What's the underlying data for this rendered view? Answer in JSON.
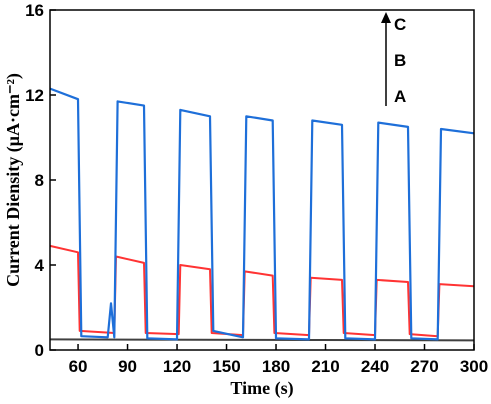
{
  "chart_data": {
    "type": "line",
    "xlabel": "Time (s)",
    "ylabel": "Current Diensity (μA·cm⁻²)",
    "xlim": [
      43,
      300
    ],
    "ylim": [
      0,
      16
    ],
    "x_ticks": [
      60,
      90,
      120,
      150,
      180,
      210,
      240,
      270,
      300
    ],
    "y_ticks": [
      0,
      4,
      8,
      12,
      16
    ],
    "grid": false,
    "legend": "none",
    "annotation": {
      "labels": [
        "C",
        "B",
        "A"
      ],
      "arrow": "up"
    },
    "series": [
      {
        "label": "A",
        "color": "#404040",
        "x": [
          43,
          300
        ],
        "y": [
          0.5,
          0.45
        ]
      },
      {
        "label": "B",
        "color": "#ff3333",
        "x": [
          43,
          60,
          61,
          82,
          83,
          100,
          101,
          121,
          122,
          140,
          141,
          160,
          161,
          178,
          179,
          200,
          201,
          220,
          221,
          240,
          241,
          260,
          261,
          278,
          279,
          300
        ],
        "y": [
          4.9,
          4.6,
          0.9,
          0.8,
          4.4,
          4.1,
          0.8,
          0.75,
          4.0,
          3.8,
          0.8,
          0.7,
          3.7,
          3.5,
          0.8,
          0.7,
          3.4,
          3.3,
          0.8,
          0.7,
          3.3,
          3.2,
          0.75,
          0.65,
          3.1,
          3.0
        ]
      },
      {
        "label": "C",
        "color": "#1e6fd9",
        "x": [
          43,
          60,
          62,
          78,
          80,
          82,
          84,
          100,
          102,
          120,
          122,
          140,
          142,
          160,
          162,
          178,
          180,
          200,
          202,
          220,
          222,
          240,
          242,
          260,
          262,
          278,
          280,
          300
        ],
        "y": [
          12.3,
          11.8,
          0.65,
          0.6,
          2.2,
          0.6,
          11.7,
          11.5,
          0.55,
          0.5,
          11.3,
          11.0,
          0.9,
          0.6,
          11.0,
          10.8,
          0.55,
          0.5,
          10.8,
          10.6,
          0.55,
          0.5,
          10.7,
          10.5,
          0.55,
          0.5,
          10.4,
          10.2
        ]
      }
    ]
  }
}
